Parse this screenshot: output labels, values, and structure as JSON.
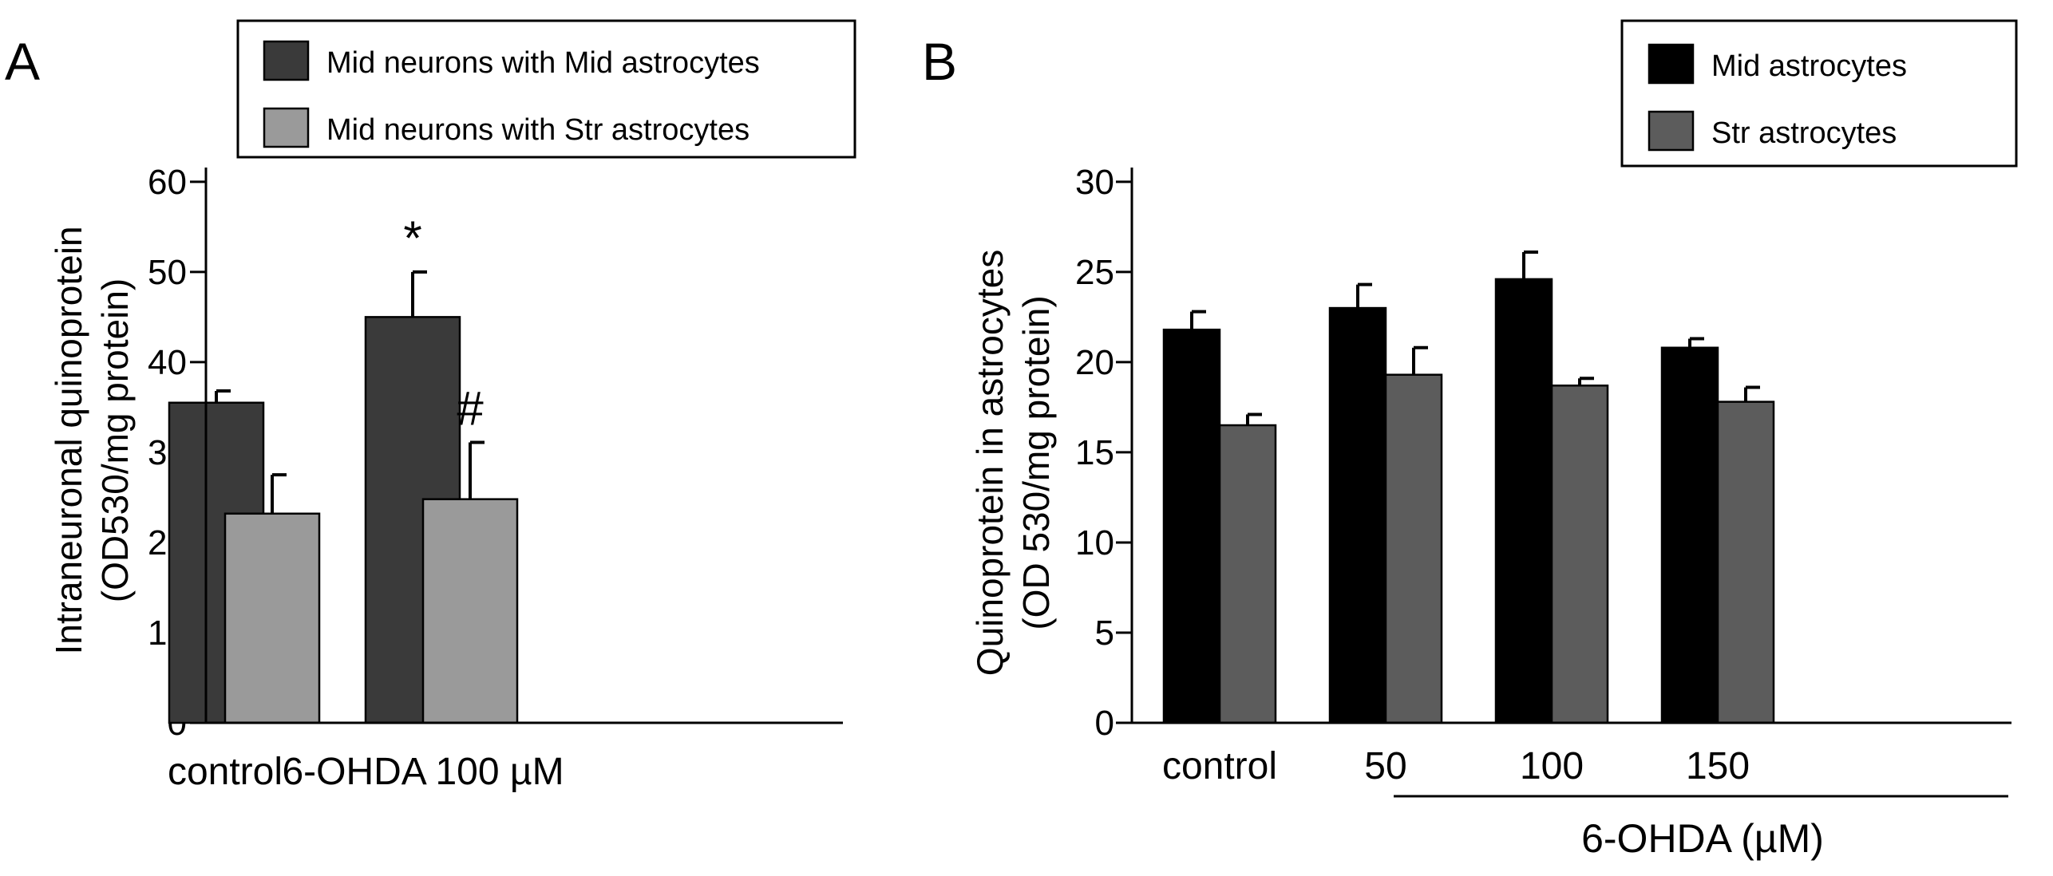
{
  "chart_data": [
    {
      "panel": "A",
      "type": "bar",
      "ylabel_line1": "Intraneuronal quinoprotein",
      "ylabel_line2": "(OD530/mg protein)",
      "ylim": [
        0,
        60
      ],
      "yticks": [
        "0",
        "10",
        "20",
        "30",
        "40",
        "50",
        "60"
      ],
      "categories": [
        "control",
        "6-OHDA 100 µM"
      ],
      "legend_position": "top",
      "series": [
        {
          "name": "Mid neurons with Mid astrocytes",
          "color": "#3a3a3a",
          "values": [
            35.5,
            45.0
          ],
          "errors": [
            1.3,
            5.0
          ],
          "annotations": [
            "",
            "*"
          ]
        },
        {
          "name": "Mid neurons with Str astrocytes",
          "color": "#9a9a9a",
          "values": [
            23.2,
            24.8
          ],
          "errors": [
            4.3,
            6.3
          ],
          "annotations": [
            "",
            "#"
          ]
        }
      ]
    },
    {
      "panel": "B",
      "type": "bar",
      "ylabel_line1": "Quinoprotein in astrocytes",
      "ylabel_line2": "(OD 530/mg protein)",
      "ylim": [
        0,
        30
      ],
      "yticks": [
        "0",
        "5",
        "10",
        "15",
        "20",
        "25",
        "30"
      ],
      "categories": [
        "control",
        "50",
        "100",
        "150"
      ],
      "group_label": "6-OHDA (µM)",
      "legend_position": "top-right",
      "series": [
        {
          "name": "Mid astrocytes",
          "color": "#000000",
          "values": [
            21.8,
            23.0,
            24.6,
            20.8
          ],
          "errors": [
            1.0,
            1.3,
            1.5,
            0.5
          ]
        },
        {
          "name": "Str astrocytes",
          "color": "#5c5c5c",
          "values": [
            16.5,
            19.3,
            18.7,
            17.8
          ],
          "errors": [
            0.6,
            1.5,
            0.4,
            0.8
          ]
        }
      ]
    }
  ]
}
